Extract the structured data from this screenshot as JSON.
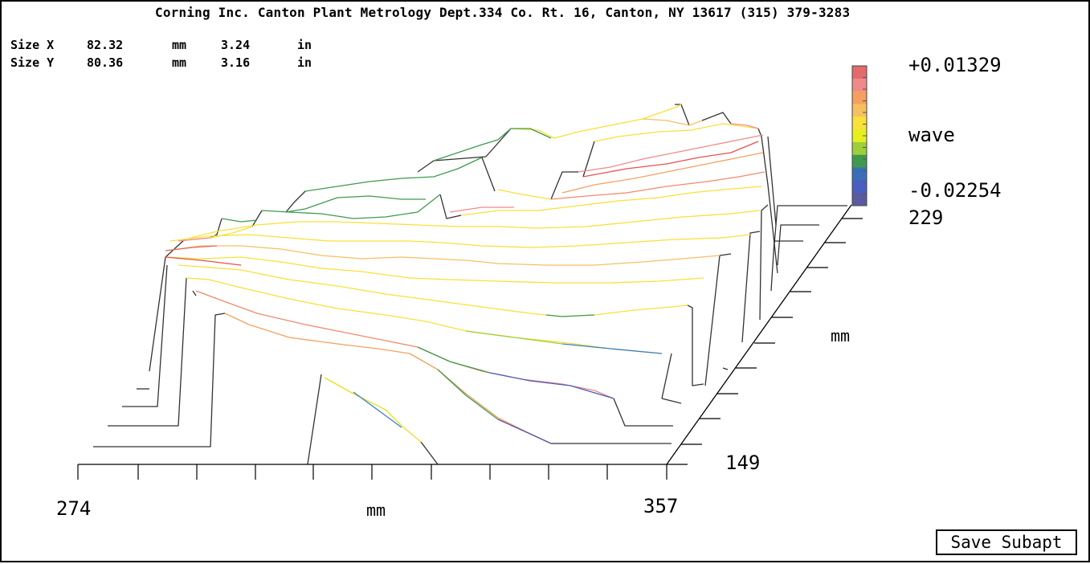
{
  "header": {
    "title": "Corning Inc. Canton Plant Metrology Dept.334 Co. Rt. 16, Canton, NY 13617 (315) 379-3283"
  },
  "size": {
    "x": {
      "label": "Size X",
      "mm": "82.32",
      "mm_unit": "mm",
      "in": "3.24",
      "in_unit": "in"
    },
    "y": {
      "label": "Size Y",
      "mm": "80.36",
      "mm_unit": "mm",
      "in": "3.16",
      "in_unit": "in"
    }
  },
  "colorbar": {
    "max_label": "+0.01329",
    "unit": "wave",
    "min_label": "-0.02254",
    "colors": [
      "#e26b6b",
      "#f08a8a",
      "#f5a060",
      "#f6c060",
      "#f7e13a",
      "#e8ef20",
      "#9dcf3a",
      "#3f9a4f",
      "#3a6fb8",
      "#4a5ec0",
      "#5a5aa0"
    ]
  },
  "axes": {
    "x_left": "274",
    "x_right": "357",
    "x_unit": "mm",
    "y_near": "149",
    "y_far": "229",
    "y_unit": "mm"
  },
  "button": {
    "save_label": "Save Subapt"
  }
}
